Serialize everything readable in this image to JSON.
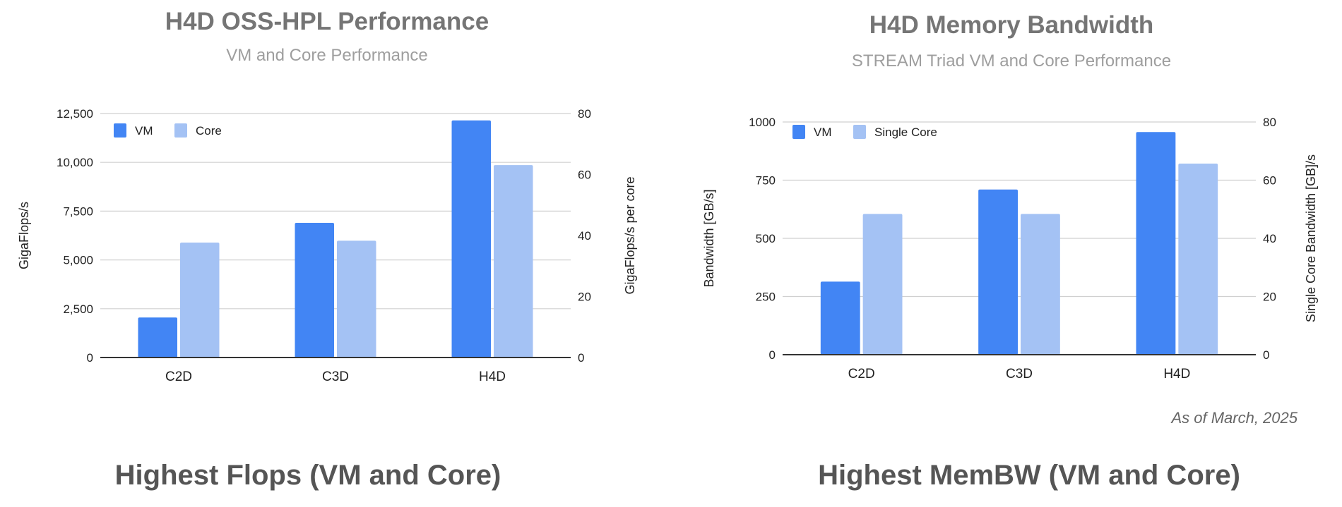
{
  "colors": {
    "vm": "#4285f4",
    "core": "#a4c2f4",
    "grid": "#d0d0d0",
    "axis": "#333333"
  },
  "note": "As of March, 2025",
  "chart_data": [
    {
      "type": "bar",
      "title": "H4D OSS-HPL Performance",
      "subtitle": "VM and Core Performance",
      "caption": "Highest Flops (VM and Core)",
      "categories": [
        "C2D",
        "C3D",
        "H4D"
      ],
      "ylabel": "GigaFlops/s",
      "ylabel_right": "GigaFlops/s per core",
      "ylim": [
        0,
        12500
      ],
      "ylim_right": [
        0,
        80
      ],
      "yticks": [
        "0",
        "2,500",
        "5,000",
        "7,500",
        "10,000",
        "12,500"
      ],
      "yticks_right": [
        "0",
        "20",
        "40",
        "60",
        "80"
      ],
      "grid": true,
      "legend": "top-left",
      "series": [
        {
          "name": "VM",
          "axis": "left",
          "values": [
            2050,
            6900,
            12150
          ]
        },
        {
          "name": "Core",
          "axis": "right",
          "values": [
            37.7,
            38.3,
            63.1
          ]
        }
      ]
    },
    {
      "type": "bar",
      "title": "H4D Memory Bandwidth",
      "subtitle": "STREAM Triad VM and Core Performance",
      "caption": "Highest MemBW (VM and Core)",
      "categories": [
        "C2D",
        "C3D",
        "H4D"
      ],
      "ylabel": "Bandwidth [GB/s]",
      "ylabel_right": "Single Core Bandwidth [GB]/s",
      "ylim": [
        0,
        1000
      ],
      "ylim_right": [
        0,
        80
      ],
      "yticks": [
        "0",
        "250",
        "500",
        "750",
        "1000"
      ],
      "yticks_right": [
        "0",
        "20",
        "40",
        "60",
        "80"
      ],
      "grid": true,
      "legend": "top-left",
      "series": [
        {
          "name": "VM",
          "axis": "left",
          "values": [
            314,
            710,
            957
          ]
        },
        {
          "name": "Single Core",
          "axis": "right",
          "values": [
            48.4,
            48.4,
            65.7
          ]
        }
      ]
    }
  ]
}
